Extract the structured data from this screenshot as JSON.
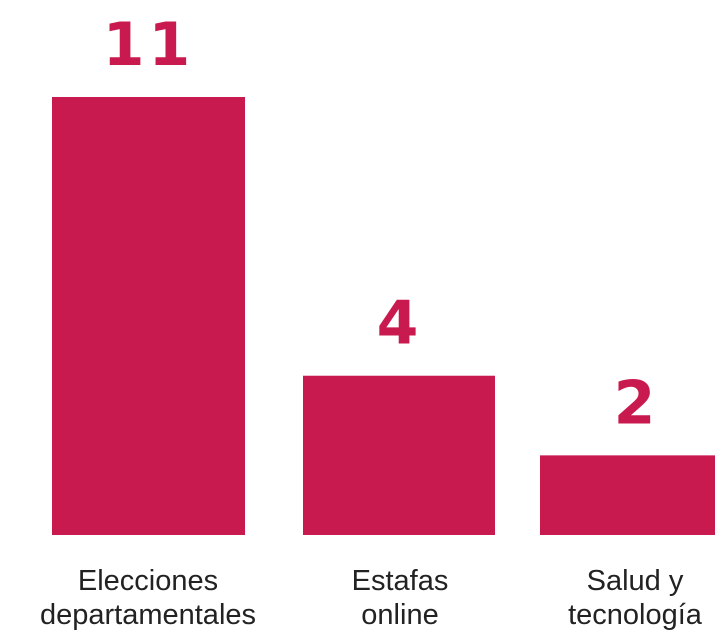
{
  "chart_data": {
    "type": "bar",
    "categories": [
      [
        "Elecciones",
        "departamentales"
      ],
      [
        "Estafas",
        "online"
      ],
      [
        "Salud y",
        "tecnología"
      ]
    ],
    "values": [
      11,
      4,
      2
    ],
    "color": "#c91a50"
  }
}
